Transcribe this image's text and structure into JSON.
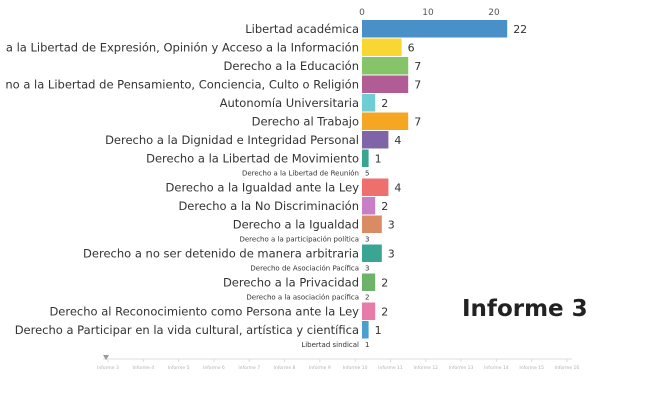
{
  "chart_data": {
    "type": "bar",
    "orientation": "horizontal",
    "x_ticks": [
      0,
      10,
      20
    ],
    "xlim": [
      0,
      22
    ],
    "bars": [
      {
        "label": "Libertad académica",
        "value": 22,
        "color": "#4a90c8",
        "size": "big"
      },
      {
        "label": "a la Libertad de Expresión, Opinión y Acceso a la Información",
        "value": 6,
        "color": "#f9d632",
        "size": "big"
      },
      {
        "label": "Derecho a la Educación",
        "value": 7,
        "color": "#86c46a",
        "size": "big"
      },
      {
        "label": "no a la Libertad de Pensamiento, Conciencia, Culto o Religión",
        "value": 7,
        "color": "#b25c96",
        "size": "big"
      },
      {
        "label": "Autonomía Universitaria",
        "value": 2,
        "color": "#6fcdd6",
        "size": "big"
      },
      {
        "label": "Derecho al Trabajo",
        "value": 7,
        "color": "#f5a623",
        "size": "big"
      },
      {
        "label": "Derecho a la Dignidad e Integridad Personal",
        "value": 4,
        "color": "#8064a8",
        "size": "big"
      },
      {
        "label": "Derecho a la Libertad de Movimiento",
        "value": 1,
        "color": "#3aa58e",
        "size": "big"
      },
      {
        "label": "Derecho a la Libertad de Reunión",
        "value": 5,
        "color": "#cccccc",
        "size": "small"
      },
      {
        "label": "Derecho a la Igualdad ante la Ley",
        "value": 4,
        "color": "#ef6f6c",
        "size": "big"
      },
      {
        "label": "Derecho a la No Discriminación",
        "value": 2,
        "color": "#c97fc5",
        "size": "big"
      },
      {
        "label": "Derecho a la Igualdad",
        "value": 3,
        "color": "#d98c63",
        "size": "big"
      },
      {
        "label": "Derecho a la participación política",
        "value": 3,
        "color": "#cccccc",
        "size": "small"
      },
      {
        "label": "Derecho a no ser detenido de manera arbitraria",
        "value": 3,
        "color": "#3aa593",
        "size": "big"
      },
      {
        "label": "Derecho de Asociación Pacífica",
        "value": 3,
        "color": "#cccccc",
        "size": "small"
      },
      {
        "label": "Derecho a la Privacidad",
        "value": 2,
        "color": "#6db36a",
        "size": "big"
      },
      {
        "label": "Derecho a la asociación pacífica",
        "value": 2,
        "color": "#cccccc",
        "size": "small"
      },
      {
        "label": "Derecho al Reconocimiento como Persona ante la Ley",
        "value": 2,
        "color": "#e77ca8",
        "size": "big"
      },
      {
        "label": "Derecho a Participar en la vida cultural, artística y científica",
        "value": 1,
        "color": "#4a9fd0",
        "size": "big"
      },
      {
        "label": "Libertad sindical",
        "value": 1,
        "color": "#cccccc",
        "size": "small"
      }
    ],
    "timeline_labels": [
      "Informe 3",
      "Informe 4",
      "Informe 5",
      "Informe 6",
      "Informe 7",
      "Informe 8",
      "Informe 9",
      "Informe 10",
      "Informe 11",
      "Informe 12",
      "Informe 13",
      "Informe 14",
      "Informe 15",
      "Informe 16"
    ]
  },
  "report_label": "Informe 3"
}
